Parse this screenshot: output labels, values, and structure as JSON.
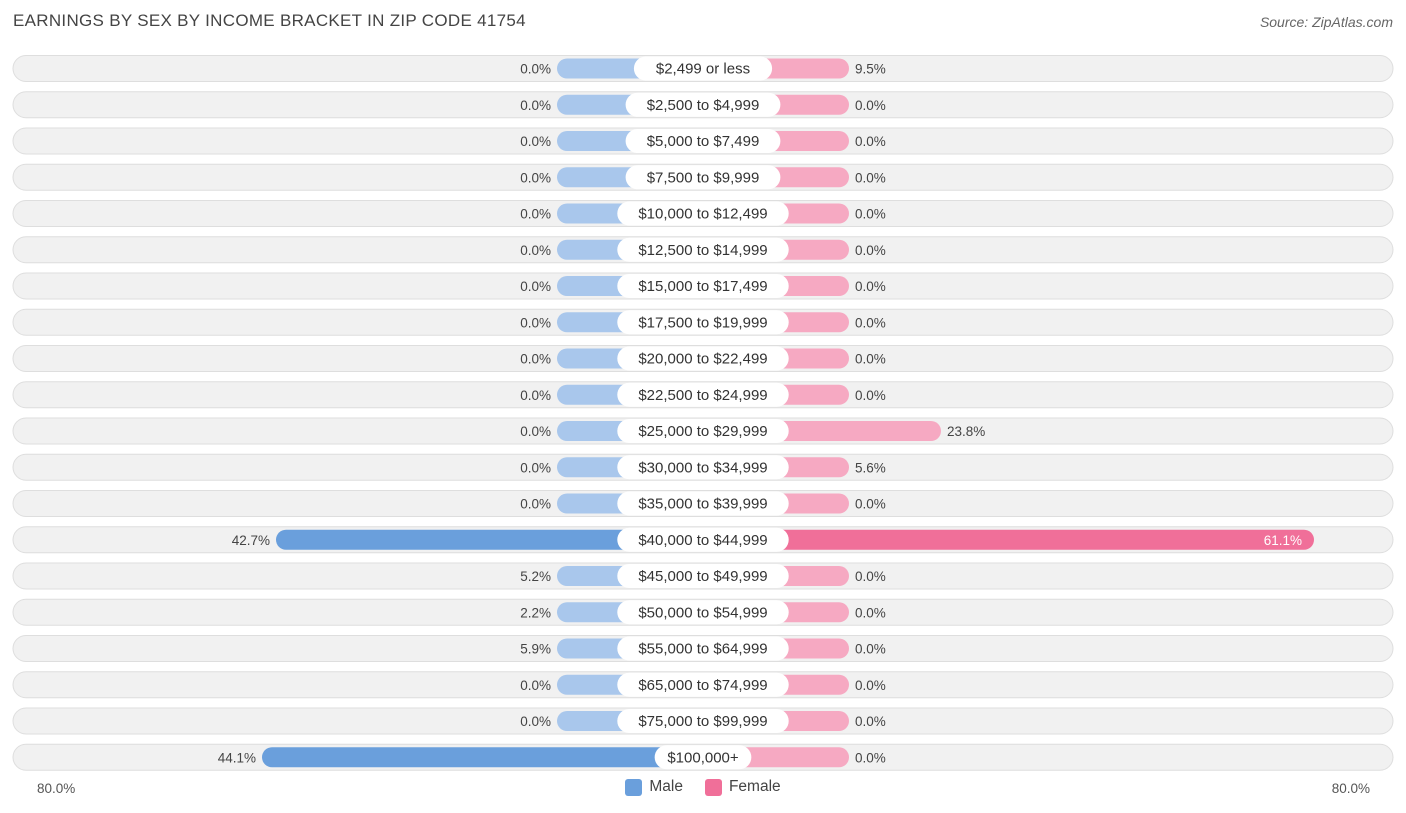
{
  "header": {
    "title": "EARNINGS BY SEX BY INCOME BRACKET IN ZIP CODE 41754",
    "source": "Source: ZipAtlas.com"
  },
  "colors": {
    "male_light": "#a9c7ec",
    "male_strong": "#6a9fdc",
    "female_light": "#f6a9c2",
    "female_strong": "#f06f99",
    "row_bg": "#f1f1f1",
    "row_border": "#dedede"
  },
  "chart_data": {
    "type": "bar",
    "orientation": "horizontal-diverging",
    "title": "EARNINGS BY SEX BY INCOME BRACKET IN ZIP CODE 41754",
    "axis_range": [
      -80,
      80
    ],
    "axis_labels": {
      "left": "80.0%",
      "right": "80.0%"
    },
    "legend": [
      "Male",
      "Female"
    ],
    "categories": [
      "$2,499 or less",
      "$2,500 to $4,999",
      "$5,000 to $7,499",
      "$7,500 to $9,999",
      "$10,000 to $12,499",
      "$12,500 to $14,999",
      "$15,000 to $17,499",
      "$17,500 to $19,999",
      "$20,000 to $22,499",
      "$22,500 to $24,999",
      "$25,000 to $29,999",
      "$30,000 to $34,999",
      "$35,000 to $39,999",
      "$40,000 to $44,999",
      "$45,000 to $49,999",
      "$50,000 to $54,999",
      "$55,000 to $64,999",
      "$65,000 to $74,999",
      "$75,000 to $99,999",
      "$100,000+"
    ],
    "series": [
      {
        "name": "Male",
        "values": [
          0.0,
          0.0,
          0.0,
          0.0,
          0.0,
          0.0,
          0.0,
          0.0,
          0.0,
          0.0,
          0.0,
          0.0,
          0.0,
          42.7,
          5.2,
          2.2,
          5.9,
          0.0,
          0.0,
          44.1
        ],
        "labels": [
          "0.0%",
          "0.0%",
          "0.0%",
          "0.0%",
          "0.0%",
          "0.0%",
          "0.0%",
          "0.0%",
          "0.0%",
          "0.0%",
          "0.0%",
          "0.0%",
          "0.0%",
          "42.7%",
          "5.2%",
          "2.2%",
          "5.9%",
          "0.0%",
          "0.0%",
          "44.1%"
        ]
      },
      {
        "name": "Female",
        "values": [
          9.5,
          0.0,
          0.0,
          0.0,
          0.0,
          0.0,
          0.0,
          0.0,
          0.0,
          0.0,
          23.8,
          5.6,
          0.0,
          61.1,
          0.0,
          0.0,
          0.0,
          0.0,
          0.0,
          0.0
        ],
        "labels": [
          "9.5%",
          "0.0%",
          "0.0%",
          "0.0%",
          "0.0%",
          "0.0%",
          "0.0%",
          "0.0%",
          "0.0%",
          "0.0%",
          "23.8%",
          "5.6%",
          "0.0%",
          "61.1%",
          "0.0%",
          "0.0%",
          "0.0%",
          "0.0%",
          "0.0%",
          "0.0%"
        ]
      }
    ]
  }
}
